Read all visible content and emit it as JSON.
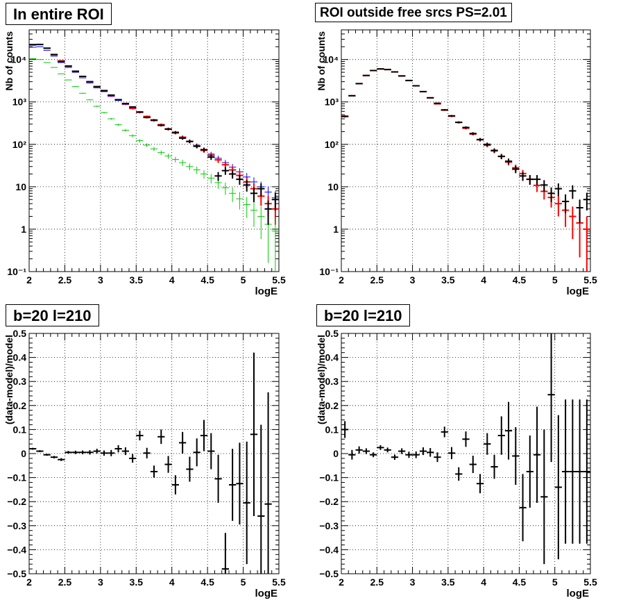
{
  "colors": {
    "data": "#000000",
    "red": "#ff0000",
    "blue": "#0000ff",
    "green": "#00cc00",
    "grid": "#000000"
  },
  "chart_data": [
    {
      "id": "p1",
      "type": "scatter",
      "title": "In entire ROI",
      "xlabel": "logE",
      "ylabel": "Nb of counts",
      "xlim": [
        2,
        5.5
      ],
      "ylim": [
        0.1,
        50000
      ],
      "yscale": "log",
      "grid": true,
      "xtick_labels": [
        "2",
        "2.5",
        "3",
        "3.5",
        "4",
        "4.5",
        "5",
        "5.5"
      ],
      "ytick_labels": [
        "10⁻¹",
        "1",
        "10",
        "10²",
        "10³",
        "10⁴"
      ],
      "series": [
        {
          "color": "blue",
          "x": [
            2.05,
            2.15,
            2.25,
            2.35,
            2.45,
            2.55,
            2.65,
            2.75,
            2.85,
            2.95,
            3.05,
            3.15,
            3.25,
            3.35,
            3.45,
            3.55,
            3.65,
            3.75,
            3.85,
            3.95,
            4.05,
            4.15,
            4.25,
            4.35,
            4.45,
            4.55,
            4.65,
            4.75,
            4.85,
            4.95,
            5.05,
            5.15,
            5.25,
            5.35,
            5.45
          ],
          "y": [
            19500,
            20000,
            16500,
            12000,
            8500,
            6500,
            5000,
            3700,
            2800,
            2150,
            1750,
            1350,
            1080,
            870,
            690,
            560,
            445,
            360,
            290,
            232,
            186,
            150,
            120,
            95,
            75,
            59,
            47,
            37,
            29,
            22.5,
            17,
            13,
            10,
            7.5,
            5.5
          ]
        },
        {
          "color": "red",
          "x": [
            2.05,
            2.15,
            2.25,
            2.35,
            2.45,
            2.55,
            2.65,
            2.75,
            2.85,
            2.95,
            3.05,
            3.15,
            3.25,
            3.35,
            3.45,
            3.55,
            3.65,
            3.75,
            3.85,
            3.95,
            4.05,
            4.15,
            4.25,
            4.35,
            4.45,
            4.55,
            4.65,
            4.75,
            4.85,
            4.95,
            5.05,
            5.15,
            5.25,
            5.35,
            5.45
          ],
          "y": [
            22000,
            22500,
            18500,
            13200,
            9300,
            7000,
            5300,
            4000,
            3000,
            2300,
            1850,
            1420,
            1130,
            900,
            710,
            570,
            455,
            365,
            292,
            232,
            185,
            147,
            117,
            92,
            72,
            55,
            43,
            33,
            25,
            18.5,
            13,
            9,
            6,
            4,
            3
          ]
        },
        {
          "color": "green",
          "x": [
            2.05,
            2.15,
            2.25,
            2.35,
            2.45,
            2.55,
            2.65,
            2.75,
            2.85,
            2.95,
            3.05,
            3.15,
            3.25,
            3.35,
            3.45,
            3.55,
            3.65,
            3.75,
            3.85,
            3.95,
            4.05,
            4.15,
            4.25,
            4.35,
            4.45,
            4.55,
            4.65,
            4.75,
            4.85,
            4.95,
            5.05,
            5.15,
            5.25,
            5.35,
            5.45
          ],
          "y": [
            10500,
            10000,
            8500,
            6500,
            4600,
            3300,
            2300,
            1600,
            1120,
            790,
            560,
            400,
            290,
            215,
            160,
            122,
            96,
            78,
            64,
            53,
            44,
            37,
            30,
            25,
            20,
            16,
            12.5,
            9.5,
            7,
            5.2,
            3.8,
            2.8,
            2,
            1.3,
            0.9
          ]
        },
        {
          "color": "data",
          "x": [
            2.05,
            2.15,
            2.25,
            2.35,
            2.45,
            2.55,
            2.65,
            2.75,
            2.85,
            2.95,
            3.05,
            3.15,
            3.25,
            3.35,
            3.45,
            3.55,
            3.65,
            3.75,
            3.85,
            3.95,
            4.05,
            4.15,
            4.25,
            4.35,
            4.45,
            4.55,
            4.65,
            4.75,
            4.85,
            4.95,
            5.05,
            5.15,
            5.25,
            5.35,
            5.45
          ],
          "y": [
            22500,
            22700,
            18500,
            13000,
            9000,
            7000,
            5300,
            4000,
            3000,
            2300,
            1850,
            1450,
            1130,
            920,
            760,
            580,
            430,
            375,
            280,
            228,
            192,
            140,
            117,
            90,
            75,
            50,
            18,
            24,
            20,
            15,
            11,
            7,
            9,
            3,
            5
          ]
        }
      ]
    },
    {
      "id": "p2",
      "type": "scatter",
      "title": "ROI outside free srcs PS=2.01",
      "xlabel": "logE",
      "ylabel": "Nb of counts",
      "xlim": [
        2,
        5.5
      ],
      "ylim": [
        0.1,
        50000
      ],
      "yscale": "log",
      "grid": true,
      "xtick_labels": [
        "2",
        "2.5",
        "3",
        "3.5",
        "4",
        "4.5",
        "5",
        "5.5"
      ],
      "ytick_labels": [
        "10⁻¹",
        "1",
        "10",
        "10²",
        "10³",
        "10⁴"
      ],
      "series": [
        {
          "color": "red",
          "x": [
            2.05,
            2.15,
            2.25,
            2.35,
            2.45,
            2.55,
            2.65,
            2.75,
            2.85,
            2.95,
            3.05,
            3.15,
            3.25,
            3.35,
            3.45,
            3.55,
            3.65,
            3.75,
            3.85,
            3.95,
            4.05,
            4.15,
            4.25,
            4.35,
            4.45,
            4.55,
            4.65,
            4.75,
            4.85,
            4.95,
            5.05,
            5.15,
            5.25,
            5.35,
            5.45
          ],
          "y": [
            450,
            1400,
            2700,
            4200,
            5500,
            6000,
            5800,
            5100,
            4100,
            3200,
            2400,
            1750,
            1250,
            900,
            640,
            460,
            330,
            240,
            175,
            128,
            95,
            70,
            52,
            38,
            28,
            20.5,
            15,
            10.8,
            7.8,
            5.6,
            4,
            2.8,
            2,
            1.4,
            1
          ]
        },
        {
          "color": "data",
          "x": [
            2.05,
            2.15,
            2.25,
            2.35,
            2.45,
            2.55,
            2.65,
            2.75,
            2.85,
            2.95,
            3.05,
            3.15,
            3.25,
            3.35,
            3.45,
            3.55,
            3.65,
            3.75,
            3.85,
            3.95,
            4.05,
            4.15,
            4.25,
            4.35,
            4.45,
            4.55,
            4.65,
            4.75,
            4.85,
            4.95,
            5.05,
            5.15,
            5.25,
            5.35,
            5.45
          ],
          "y": [
            460,
            1400,
            2700,
            4200,
            5500,
            6000,
            5800,
            5100,
            4100,
            3200,
            2400,
            1750,
            1250,
            930,
            650,
            470,
            330,
            250,
            180,
            130,
            100,
            72,
            52,
            40,
            26,
            18,
            15,
            15,
            11,
            7,
            9,
            4.5,
            8,
            3.2,
            5
          ]
        }
      ]
    },
    {
      "id": "p3",
      "type": "scatter",
      "title": "b=20 l=210",
      "xlabel": "logE",
      "ylabel": "(data-model)/model",
      "xlim": [
        2,
        5.5
      ],
      "ylim": [
        -0.5,
        0.5
      ],
      "yscale": "linear",
      "grid": true,
      "xtick_labels": [
        "2",
        "2.5",
        "3",
        "3.5",
        "4",
        "4.5",
        "5",
        "5.5"
      ],
      "ytick_labels": [
        "−0.5",
        "−0.4",
        "−0.3",
        "−0.2",
        "−0.1",
        "0",
        "0.1",
        "0.2",
        "0.3",
        "0.4",
        "0.5"
      ],
      "series": [
        {
          "color": "data",
          "x": [
            2.05,
            2.15,
            2.25,
            2.35,
            2.45,
            2.55,
            2.65,
            2.75,
            2.85,
            2.95,
            3.05,
            3.15,
            3.25,
            3.35,
            3.45,
            3.55,
            3.65,
            3.75,
            3.85,
            3.95,
            4.05,
            4.15,
            4.25,
            4.35,
            4.45,
            4.55,
            4.65,
            4.75,
            4.85,
            4.95,
            5.05,
            5.15,
            5.25,
            5.35
          ],
          "y": [
            0.02,
            0.01,
            -0.005,
            -0.015,
            -0.025,
            0.005,
            0.005,
            0.005,
            0.005,
            0.01,
            0.002,
            0.002,
            0.02,
            0.01,
            -0.02,
            0.075,
            0.002,
            -0.075,
            0.07,
            -0.045,
            -0.13,
            0.045,
            -0.065,
            0.005,
            0.075,
            0.01,
            -0.105,
            -0.48,
            -0.13,
            -0.125,
            -0.205,
            0.08,
            -0.26,
            -0.21
          ],
          "yerr": [
            0.004,
            0.004,
            0.004,
            0.005,
            0.006,
            0.006,
            0.007,
            0.008,
            0.009,
            0.01,
            0.011,
            0.013,
            0.015,
            0.016,
            0.018,
            0.02,
            0.022,
            0.025,
            0.03,
            0.035,
            0.04,
            0.045,
            0.052,
            0.058,
            0.065,
            0.075,
            0.1,
            0.15,
            0.15,
            0.17,
            0.255,
            0.34,
            0.38,
            0.465
          ]
        }
      ]
    },
    {
      "id": "p4",
      "type": "scatter",
      "title": "b=20 l=210",
      "xlabel": "logE",
      "ylabel": "(data-model)/model",
      "xlim": [
        2,
        5.5
      ],
      "ylim": [
        -0.5,
        0.5
      ],
      "yscale": "linear",
      "grid": true,
      "xtick_labels": [
        "2",
        "2.5",
        "3",
        "3.5",
        "4",
        "4.5",
        "5",
        "5.5"
      ],
      "ytick_labels": [
        "−0.5",
        "−0.4",
        "−0.3",
        "−0.2",
        "−0.1",
        "0",
        "0.1",
        "0.2",
        "0.3",
        "0.4",
        "0.5"
      ],
      "series": [
        {
          "color": "data",
          "x": [
            2.05,
            2.15,
            2.25,
            2.35,
            2.45,
            2.55,
            2.65,
            2.75,
            2.85,
            2.95,
            3.05,
            3.15,
            3.25,
            3.35,
            3.45,
            3.55,
            3.65,
            3.75,
            3.85,
            3.95,
            4.05,
            4.15,
            4.25,
            4.35,
            4.45,
            4.55,
            4.65,
            4.75,
            4.85,
            4.95,
            5.05,
            5.15,
            5.25,
            5.35,
            5.45
          ],
          "y": [
            0.1,
            -0.005,
            0.015,
            0.01,
            -0.005,
            0.025,
            0.015,
            -0.015,
            0.01,
            -0.005,
            -0.005,
            0.01,
            0.005,
            -0.015,
            0.09,
            0.002,
            -0.085,
            0.06,
            -0.045,
            -0.125,
            0.04,
            -0.055,
            0.075,
            0.095,
            -0.01,
            -0.225,
            -0.075,
            -0.005,
            -0.18,
            0.245,
            -0.14,
            -0.075,
            -0.075,
            -0.075,
            -0.075
          ],
          "yerr": [
            0.035,
            0.02,
            0.015,
            0.012,
            0.01,
            0.01,
            0.01,
            0.011,
            0.012,
            0.013,
            0.014,
            0.016,
            0.018,
            0.02,
            0.022,
            0.025,
            0.028,
            0.032,
            0.036,
            0.04,
            0.045,
            0.05,
            0.08,
            0.12,
            0.12,
            0.14,
            0.15,
            0.2,
            0.28,
            0.28,
            0.3,
            0.3,
            0.3,
            0.3,
            0.3
          ]
        }
      ]
    }
  ]
}
